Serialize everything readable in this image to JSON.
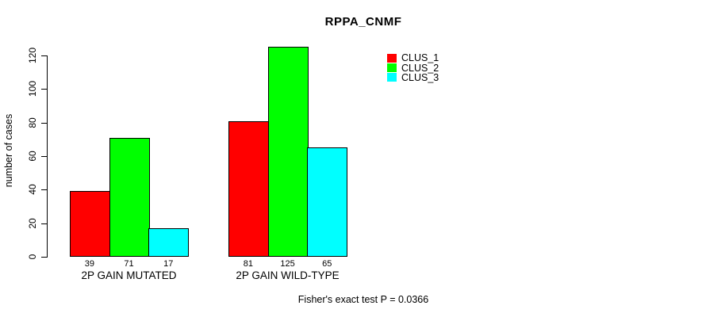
{
  "chart_data": {
    "type": "bar",
    "title": "RPPA_CNMF",
    "xlabel": "",
    "ylabel": "number of cases",
    "ylim": [
      0,
      130
    ],
    "yticks": [
      0,
      20,
      40,
      60,
      80,
      100,
      120
    ],
    "categories": [
      "2P GAIN MUTATED",
      "2P GAIN WILD-TYPE"
    ],
    "series": [
      {
        "name": "CLUS_1",
        "color": "#ff0000",
        "values": [
          39,
          81
        ]
      },
      {
        "name": "CLUS_2",
        "color": "#00ff00",
        "values": [
          71,
          125
        ]
      },
      {
        "name": "CLUS_3",
        "color": "#00ffff",
        "values": [
          17,
          65
        ]
      }
    ],
    "bar_value_labels": [
      [
        39,
        71,
        17
      ],
      [
        81,
        125,
        65
      ]
    ],
    "annotation": "Fisher's exact test P = 0.0366",
    "legend_position": "top-right",
    "grid": false,
    "background": "#ffffff",
    "axis_color": "#000000"
  }
}
